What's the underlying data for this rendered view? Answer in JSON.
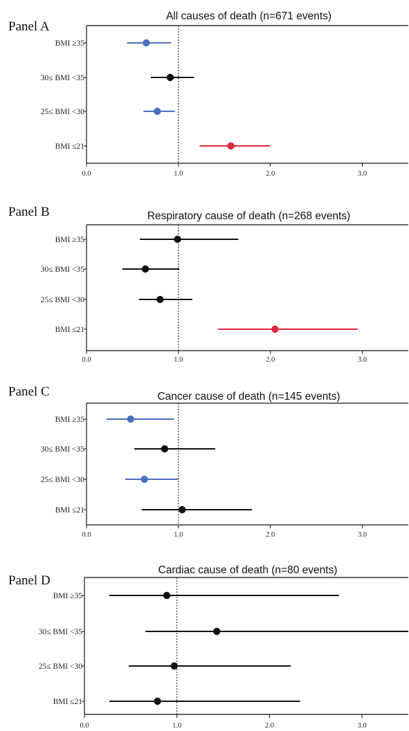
{
  "chart_data": [
    {
      "type": "forest",
      "panel_label": "Panel A",
      "title": "All causes of death (n=671 events)",
      "categories": [
        "BMI ≥35",
        "30≤ BMI <35",
        "25≤ BMI <30",
        "BMI ≤21"
      ],
      "estimates": [
        0.65,
        0.91,
        0.77,
        1.57
      ],
      "lower": [
        0.44,
        0.7,
        0.62,
        1.23
      ],
      "upper": [
        0.92,
        1.17,
        0.96,
        2.0
      ],
      "colors": [
        "#4a6fbf",
        "#111111",
        "#4a6fbf",
        "#e0283f"
      ],
      "reference": 1.0,
      "xlim": [
        0,
        3.5
      ],
      "x_ticks": [
        0,
        1,
        2,
        3
      ],
      "x_tick_labels": [
        "0.0",
        "1.0",
        "2.0",
        "3.0"
      ]
    },
    {
      "type": "forest",
      "panel_label": "Panel B",
      "title": "Respiratory cause of death (n=268 events)",
      "categories": [
        "BMI ≥35",
        "30≤ BMI <35",
        "25≤ BMI <30",
        "BMI ≤21"
      ],
      "estimates": [
        0.99,
        0.64,
        0.8,
        2.05
      ],
      "lower": [
        0.58,
        0.39,
        0.57,
        1.43
      ],
      "upper": [
        1.65,
        1.01,
        1.15,
        2.95
      ],
      "colors": [
        "#111111",
        "#111111",
        "#111111",
        "#e0283f"
      ],
      "reference": 1.0,
      "xlim": [
        0,
        3.5
      ],
      "x_ticks": [
        0,
        1,
        2,
        3
      ],
      "x_tick_labels": [
        "0.0",
        "1.0",
        "2.0",
        "3.0"
      ]
    },
    {
      "type": "forest",
      "panel_label": "Panel C",
      "title": "Cancer cause of death (n=145 events)",
      "categories": [
        "BMI ≥35",
        "30≤ BMI <35",
        "25≤ BMI <30",
        "BMI ≤21"
      ],
      "estimates": [
        0.48,
        0.85,
        0.63,
        1.04
      ],
      "lower": [
        0.22,
        0.52,
        0.42,
        0.6
      ],
      "upper": [
        0.95,
        1.4,
        1.0,
        1.8
      ],
      "colors": [
        "#4a6fbf",
        "#111111",
        "#4a6fbf",
        "#111111"
      ],
      "reference": 1.0,
      "xlim": [
        0,
        3.5
      ],
      "x_ticks": [
        0,
        1,
        2,
        3
      ],
      "x_tick_labels": [
        "0.0",
        "1.0",
        "2.0",
        "3.0"
      ]
    },
    {
      "type": "forest",
      "panel_label": "Panel D",
      "title": "Cardiac cause of death (n=80 events)",
      "categories": [
        "BMI ≥35",
        "30≤ BMI <35",
        "25≤ BMI <30",
        "BMI ≤21"
      ],
      "estimates": [
        0.89,
        1.43,
        0.97,
        0.79
      ],
      "lower": [
        0.27,
        0.66,
        0.48,
        0.27
      ],
      "upper": [
        2.75,
        3.5,
        2.23,
        2.33
      ],
      "colors": [
        "#111111",
        "#111111",
        "#111111",
        "#111111"
      ],
      "reference": 1.0,
      "xlim": [
        0,
        3.5
      ],
      "x_ticks": [
        0,
        1,
        2,
        3
      ],
      "x_tick_labels": [
        "0.0",
        "1.0",
        "2.0",
        "3.0"
      ]
    }
  ]
}
